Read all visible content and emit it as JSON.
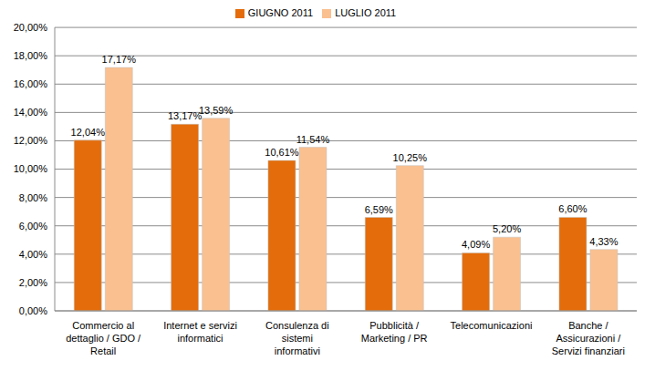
{
  "chart_data": {
    "type": "bar",
    "categories": [
      "Commercio al dettaglio / GDO / Retail",
      "Internet e servizi informatici",
      "Consulenza di sistemi informativi",
      "Pubblicità / Marketing / PR",
      "Telecomunicazioni",
      "Banche / Assicurazioni / Servizi finanziari"
    ],
    "series": [
      {
        "name": "GIUGNO 2011",
        "color": "#e46c0a",
        "values": [
          12.04,
          13.17,
          10.61,
          6.59,
          4.09,
          6.6
        ],
        "value_labels": [
          "12,04%",
          "13,17%",
          "10,61%",
          "6,59%",
          "4,09%",
          "6,60%"
        ]
      },
      {
        "name": "LUGLIO 2011",
        "color": "#fac090",
        "values": [
          17.17,
          13.59,
          11.54,
          10.25,
          5.2,
          4.33
        ],
        "value_labels": [
          "17,17%",
          "13,59%",
          "11,54%",
          "10,25%",
          "5,20%",
          "4,33%"
        ]
      }
    ],
    "ylim": [
      0,
      20
    ],
    "yticks": [
      {
        "value": 0,
        "label": "0,00%"
      },
      {
        "value": 2,
        "label": "2,00%"
      },
      {
        "value": 4,
        "label": "4,00%"
      },
      {
        "value": 6,
        "label": "6,00%"
      },
      {
        "value": 8,
        "label": "8,00%"
      },
      {
        "value": 10,
        "label": "10,00%"
      },
      {
        "value": 12,
        "label": "12,00%"
      },
      {
        "value": 14,
        "label": "14,00%"
      },
      {
        "value": 16,
        "label": "16,00%"
      },
      {
        "value": 18,
        "label": "18,00%"
      },
      {
        "value": 20,
        "label": "20,00%"
      }
    ],
    "grid": true,
    "legend": "top",
    "data_labels": true
  }
}
